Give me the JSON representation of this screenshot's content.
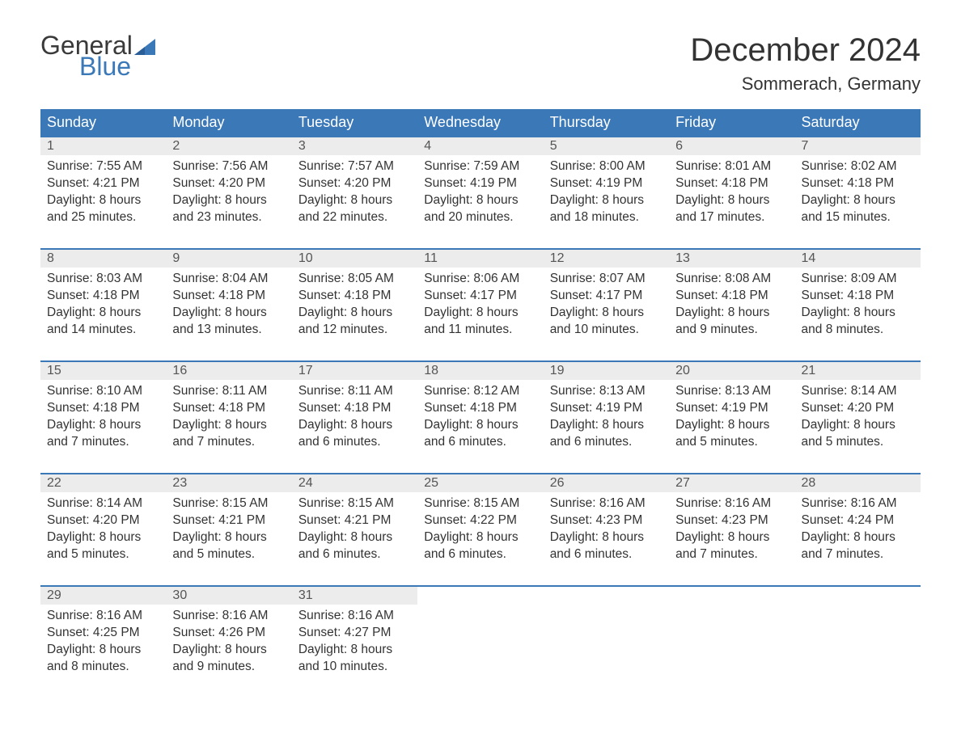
{
  "logo": {
    "text_top": "General",
    "text_bottom": "Blue",
    "flag_color": "#3b78b8",
    "top_color": "#3a3a3a"
  },
  "title": "December 2024",
  "location": "Sommerach, Germany",
  "colors": {
    "header_bg": "#3b78b8",
    "header_text": "#ffffff",
    "daynum_bg": "#ececec",
    "row_border": "#3b78b8",
    "body_text": "#333333",
    "page_bg": "#ffffff"
  },
  "fonts": {
    "title_size": 40,
    "location_size": 22,
    "dayhead_size": 18,
    "daynum_size": 16,
    "body_size": 15.5
  },
  "day_names": [
    "Sunday",
    "Monday",
    "Tuesday",
    "Wednesday",
    "Thursday",
    "Friday",
    "Saturday"
  ],
  "weeks": [
    [
      {
        "num": "1",
        "sunrise": "7:55 AM",
        "sunset": "4:21 PM",
        "daylight": "8 hours and 25 minutes."
      },
      {
        "num": "2",
        "sunrise": "7:56 AM",
        "sunset": "4:20 PM",
        "daylight": "8 hours and 23 minutes."
      },
      {
        "num": "3",
        "sunrise": "7:57 AM",
        "sunset": "4:20 PM",
        "daylight": "8 hours and 22 minutes."
      },
      {
        "num": "4",
        "sunrise": "7:59 AM",
        "sunset": "4:19 PM",
        "daylight": "8 hours and 20 minutes."
      },
      {
        "num": "5",
        "sunrise": "8:00 AM",
        "sunset": "4:19 PM",
        "daylight": "8 hours and 18 minutes."
      },
      {
        "num": "6",
        "sunrise": "8:01 AM",
        "sunset": "4:18 PM",
        "daylight": "8 hours and 17 minutes."
      },
      {
        "num": "7",
        "sunrise": "8:02 AM",
        "sunset": "4:18 PM",
        "daylight": "8 hours and 15 minutes."
      }
    ],
    [
      {
        "num": "8",
        "sunrise": "8:03 AM",
        "sunset": "4:18 PM",
        "daylight": "8 hours and 14 minutes."
      },
      {
        "num": "9",
        "sunrise": "8:04 AM",
        "sunset": "4:18 PM",
        "daylight": "8 hours and 13 minutes."
      },
      {
        "num": "10",
        "sunrise": "8:05 AM",
        "sunset": "4:18 PM",
        "daylight": "8 hours and 12 minutes."
      },
      {
        "num": "11",
        "sunrise": "8:06 AM",
        "sunset": "4:17 PM",
        "daylight": "8 hours and 11 minutes."
      },
      {
        "num": "12",
        "sunrise": "8:07 AM",
        "sunset": "4:17 PM",
        "daylight": "8 hours and 10 minutes."
      },
      {
        "num": "13",
        "sunrise": "8:08 AM",
        "sunset": "4:18 PM",
        "daylight": "8 hours and 9 minutes."
      },
      {
        "num": "14",
        "sunrise": "8:09 AM",
        "sunset": "4:18 PM",
        "daylight": "8 hours and 8 minutes."
      }
    ],
    [
      {
        "num": "15",
        "sunrise": "8:10 AM",
        "sunset": "4:18 PM",
        "daylight": "8 hours and 7 minutes."
      },
      {
        "num": "16",
        "sunrise": "8:11 AM",
        "sunset": "4:18 PM",
        "daylight": "8 hours and 7 minutes."
      },
      {
        "num": "17",
        "sunrise": "8:11 AM",
        "sunset": "4:18 PM",
        "daylight": "8 hours and 6 minutes."
      },
      {
        "num": "18",
        "sunrise": "8:12 AM",
        "sunset": "4:18 PM",
        "daylight": "8 hours and 6 minutes."
      },
      {
        "num": "19",
        "sunrise": "8:13 AM",
        "sunset": "4:19 PM",
        "daylight": "8 hours and 6 minutes."
      },
      {
        "num": "20",
        "sunrise": "8:13 AM",
        "sunset": "4:19 PM",
        "daylight": "8 hours and 5 minutes."
      },
      {
        "num": "21",
        "sunrise": "8:14 AM",
        "sunset": "4:20 PM",
        "daylight": "8 hours and 5 minutes."
      }
    ],
    [
      {
        "num": "22",
        "sunrise": "8:14 AM",
        "sunset": "4:20 PM",
        "daylight": "8 hours and 5 minutes."
      },
      {
        "num": "23",
        "sunrise": "8:15 AM",
        "sunset": "4:21 PM",
        "daylight": "8 hours and 5 minutes."
      },
      {
        "num": "24",
        "sunrise": "8:15 AM",
        "sunset": "4:21 PM",
        "daylight": "8 hours and 6 minutes."
      },
      {
        "num": "25",
        "sunrise": "8:15 AM",
        "sunset": "4:22 PM",
        "daylight": "8 hours and 6 minutes."
      },
      {
        "num": "26",
        "sunrise": "8:16 AM",
        "sunset": "4:23 PM",
        "daylight": "8 hours and 6 minutes."
      },
      {
        "num": "27",
        "sunrise": "8:16 AM",
        "sunset": "4:23 PM",
        "daylight": "8 hours and 7 minutes."
      },
      {
        "num": "28",
        "sunrise": "8:16 AM",
        "sunset": "4:24 PM",
        "daylight": "8 hours and 7 minutes."
      }
    ],
    [
      {
        "num": "29",
        "sunrise": "8:16 AM",
        "sunset": "4:25 PM",
        "daylight": "8 hours and 8 minutes."
      },
      {
        "num": "30",
        "sunrise": "8:16 AM",
        "sunset": "4:26 PM",
        "daylight": "8 hours and 9 minutes."
      },
      {
        "num": "31",
        "sunrise": "8:16 AM",
        "sunset": "4:27 PM",
        "daylight": "8 hours and 10 minutes."
      },
      null,
      null,
      null,
      null
    ]
  ],
  "labels": {
    "sunrise": "Sunrise: ",
    "sunset": "Sunset: ",
    "daylight": "Daylight: "
  }
}
